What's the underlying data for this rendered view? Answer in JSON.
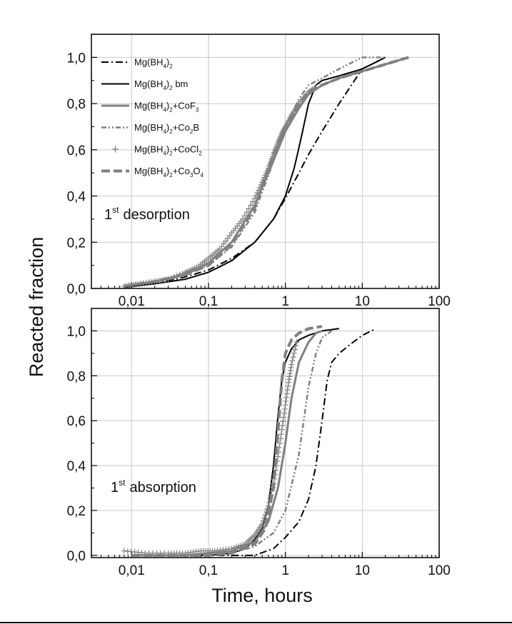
{
  "colors": {
    "black": "#000000",
    "gray": "#808080",
    "grid": "#c8c8c8",
    "frame": "#000000"
  },
  "ylabel": "Reacted fraction",
  "xlabel": "Time, hours",
  "chart_data": [
    {
      "type": "line",
      "panel": "top",
      "annotation": {
        "prefix": "1",
        "sup": "st",
        "text": "desorption"
      },
      "xscale": "log",
      "xlim": [
        0.003,
        100
      ],
      "ylim": [
        0,
        1.1
      ],
      "xticks": [
        0.01,
        0.1,
        1,
        10,
        100
      ],
      "xtick_labels": [
        "0,01",
        "0,1",
        "1",
        "10",
        "100"
      ],
      "yticks": [
        0,
        0.2,
        0.4,
        0.6,
        0.8,
        1.0
      ],
      "ytick_labels": [
        "0,0",
        "0,2",
        "0,4",
        "0,6",
        "0,8",
        "1,0"
      ],
      "grid": true,
      "legend_position": "top-left",
      "series": [
        {
          "legend": {
            "base": "Mg(BH",
            "sub1": "4",
            "mid": ")",
            "sub2": "2",
            "tail": ""
          },
          "color": "#000000",
          "style": "dashdot",
          "x": [
            0.008,
            0.02,
            0.05,
            0.1,
            0.2,
            0.4,
            0.7,
            1.0,
            1.5,
            2.0,
            3.0,
            5.0,
            10,
            20
          ],
          "y": [
            0.005,
            0.02,
            0.05,
            0.08,
            0.13,
            0.2,
            0.3,
            0.39,
            0.5,
            0.58,
            0.68,
            0.8,
            0.95,
            1.0
          ]
        },
        {
          "legend": {
            "base": "Mg(BH",
            "sub1": "4",
            "mid": ")",
            "sub2": "2",
            "tail": " bm"
          },
          "color": "#000000",
          "style": "solid",
          "x": [
            0.008,
            0.02,
            0.05,
            0.1,
            0.2,
            0.4,
            0.7,
            1.0,
            1.3,
            1.6,
            2.0,
            2.5,
            3.0,
            5.0,
            10,
            20
          ],
          "y": [
            0.005,
            0.02,
            0.04,
            0.07,
            0.12,
            0.2,
            0.3,
            0.4,
            0.52,
            0.65,
            0.8,
            0.88,
            0.9,
            0.92,
            0.95,
            1.0
          ]
        },
        {
          "legend": {
            "base": "Mg(BH",
            "sub1": "4",
            "mid": ")",
            "sub2": "2",
            "tail": "+CoF",
            "sub3": "3"
          },
          "color": "#808080",
          "style": "solid-thick",
          "x": [
            0.008,
            0.02,
            0.05,
            0.1,
            0.2,
            0.4,
            0.6,
            0.8,
            1.0,
            1.5,
            2.0,
            3.0,
            5.0,
            10,
            20,
            40
          ],
          "y": [
            0.01,
            0.03,
            0.06,
            0.11,
            0.2,
            0.36,
            0.5,
            0.6,
            0.68,
            0.78,
            0.84,
            0.88,
            0.91,
            0.94,
            0.97,
            1.0
          ]
        },
        {
          "legend": {
            "base": "Mg(BH",
            "sub1": "4",
            "mid": ")",
            "sub2": "2",
            "tail": "+Co",
            "sub3": "2",
            "tail2": "B"
          },
          "color": "#808080",
          "style": "dashdotdot",
          "x": [
            0.008,
            0.02,
            0.05,
            0.1,
            0.2,
            0.4,
            0.7,
            1.0,
            1.5,
            2.0,
            3.0,
            5.0,
            10,
            20
          ],
          "y": [
            0.01,
            0.03,
            0.06,
            0.1,
            0.18,
            0.33,
            0.55,
            0.7,
            0.82,
            0.88,
            0.91,
            0.95,
            1.0,
            1.0
          ]
        },
        {
          "legend": {
            "base": "Mg(BH",
            "sub1": "4",
            "mid": ")",
            "sub2": "2",
            "tail": "+CoCl",
            "sub3": "2"
          },
          "color": "#808080",
          "style": "plus",
          "x": [
            0.008,
            0.012,
            0.02,
            0.03,
            0.05,
            0.07,
            0.1,
            0.14,
            0.2,
            0.28,
            0.4,
            0.5,
            0.6,
            0.7,
            0.8,
            0.9,
            1.0,
            1.2,
            1.5,
            2.0,
            2.5
          ],
          "y": [
            0.01,
            0.02,
            0.03,
            0.04,
            0.07,
            0.09,
            0.13,
            0.17,
            0.24,
            0.3,
            0.39,
            0.46,
            0.52,
            0.58,
            0.63,
            0.67,
            0.7,
            0.75,
            0.8,
            0.85,
            0.87
          ]
        },
        {
          "legend": {
            "base": "Mg(BH",
            "sub1": "4",
            "mid": ")",
            "sub2": "2",
            "tail": "+Co",
            "sub3": "3",
            "tail2": "O",
            "sub4": "4"
          },
          "color": "#808080",
          "style": "dash-thick",
          "x": [
            0.008,
            0.02,
            0.05,
            0.1,
            0.2,
            0.4,
            0.6,
            0.8,
            1.0,
            1.5,
            2.0,
            3.0,
            5.0,
            10,
            20,
            40
          ],
          "y": [
            0.01,
            0.03,
            0.06,
            0.1,
            0.19,
            0.35,
            0.52,
            0.63,
            0.7,
            0.8,
            0.85,
            0.88,
            0.91,
            0.94,
            0.97,
            1.0
          ]
        }
      ]
    },
    {
      "type": "line",
      "panel": "bottom",
      "annotation": {
        "prefix": "1",
        "sup": "st",
        "text": "absorption"
      },
      "xscale": "log",
      "xlim": [
        0.003,
        100
      ],
      "ylim": [
        -0.01,
        1.1
      ],
      "xticks": [
        0.01,
        0.1,
        1,
        10,
        100
      ],
      "xtick_labels": [
        "0,01",
        "0,1",
        "1",
        "10",
        "100"
      ],
      "yticks": [
        0,
        0.2,
        0.4,
        0.6,
        0.8,
        1.0
      ],
      "ytick_labels": [
        "0,0",
        "0,2",
        "0,4",
        "0,6",
        "0,8",
        "1,0"
      ],
      "grid": true,
      "series": [
        {
          "name": "Mg(BH4)2",
          "color": "#000000",
          "style": "dashdot",
          "x": [
            0.01,
            0.05,
            0.1,
            0.2,
            0.4,
            0.7,
            1.0,
            1.5,
            2.0,
            2.5,
            3.0,
            3.5,
            4.0,
            5.0,
            7.0,
            10,
            15
          ],
          "y": [
            0.0,
            0.0,
            0.0,
            0.0,
            0.0,
            0.03,
            0.08,
            0.15,
            0.25,
            0.4,
            0.6,
            0.78,
            0.86,
            0.9,
            0.94,
            0.98,
            1.01
          ]
        },
        {
          "name": "Mg(BH4)2 bm",
          "color": "#000000",
          "style": "solid",
          "x": [
            0.01,
            0.05,
            0.1,
            0.2,
            0.3,
            0.4,
            0.5,
            0.6,
            0.7,
            0.8,
            0.9,
            1.0,
            1.2,
            1.5,
            2.0,
            3.0,
            5.0
          ],
          "y": [
            0.0,
            0.0,
            0.0,
            0.01,
            0.03,
            0.07,
            0.12,
            0.22,
            0.4,
            0.62,
            0.78,
            0.86,
            0.92,
            0.96,
            0.98,
            1.0,
            1.01
          ]
        },
        {
          "name": "Mg(BH4)2+CoF3",
          "color": "#808080",
          "style": "solid-thick",
          "x": [
            0.01,
            0.05,
            0.1,
            0.2,
            0.4,
            0.6,
            0.8,
            1.0,
            1.2,
            1.5,
            2.0,
            2.5,
            3.0
          ],
          "y": [
            0.0,
            0.0,
            0.01,
            0.02,
            0.06,
            0.15,
            0.3,
            0.5,
            0.7,
            0.86,
            0.95,
            0.99,
            1.0
          ]
        },
        {
          "name": "Mg(BH4)2+Co2B",
          "color": "#808080",
          "style": "dashdotdot",
          "x": [
            0.01,
            0.05,
            0.1,
            0.2,
            0.4,
            0.7,
            1.0,
            1.5,
            2.0,
            2.5,
            3.0,
            4.0
          ],
          "y": [
            0.0,
            0.0,
            0.0,
            0.01,
            0.04,
            0.1,
            0.2,
            0.45,
            0.75,
            0.9,
            0.97,
            1.0
          ]
        },
        {
          "name": "Mg(BH4)2+CoCl2",
          "color": "#808080",
          "style": "plus",
          "x": [
            0.008,
            0.015,
            0.03,
            0.05,
            0.08,
            0.12,
            0.2,
            0.3,
            0.4,
            0.5,
            0.6,
            0.7,
            0.8,
            0.9,
            1.0,
            1.1,
            1.2,
            1.4
          ],
          "y": [
            0.02,
            0.01,
            0.01,
            0.01,
            0.02,
            0.02,
            0.03,
            0.05,
            0.09,
            0.14,
            0.22,
            0.32,
            0.44,
            0.56,
            0.67,
            0.77,
            0.85,
            0.95
          ]
        },
        {
          "name": "Mg(BH4)2+Co3O4",
          "color": "#808080",
          "style": "dash-thick",
          "x": [
            0.01,
            0.05,
            0.1,
            0.2,
            0.4,
            0.55,
            0.7,
            0.8,
            0.9,
            1.0,
            1.2,
            1.5,
            2.0,
            3.0
          ],
          "y": [
            0.0,
            0.0,
            0.0,
            0.01,
            0.05,
            0.12,
            0.3,
            0.55,
            0.78,
            0.9,
            0.96,
            0.99,
            1.01,
            1.02
          ]
        }
      ]
    }
  ]
}
